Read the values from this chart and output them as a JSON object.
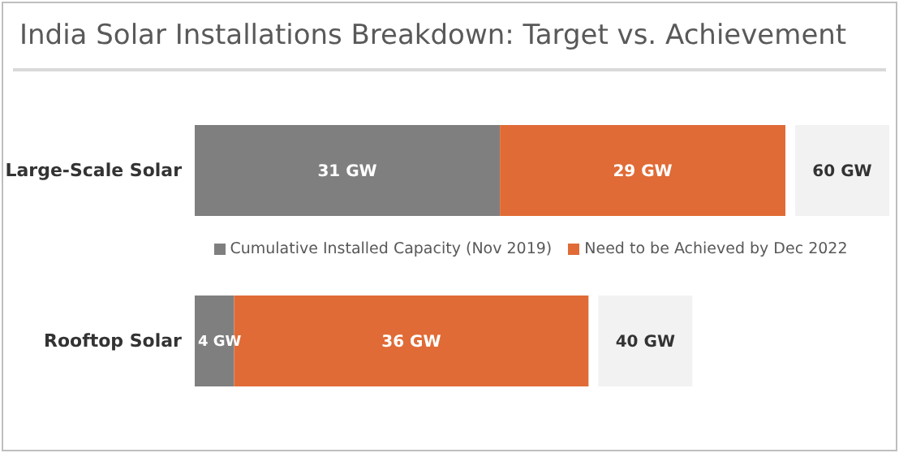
{
  "chart_data": {
    "type": "bar",
    "orientation": "horizontal",
    "stacked": true,
    "title": "India Solar Installations Breakdown: Target vs. Achievement",
    "categories": [
      "Large-Scale Solar",
      "Rooftop Solar"
    ],
    "series": [
      {
        "name": "Cumulative Installed Capacity (Nov 2019)",
        "color": "#7f7f7f",
        "values": [
          31,
          4
        ],
        "value_labels": [
          "31 GW",
          "4 GW"
        ]
      },
      {
        "name": "Need to be Achieved by Dec 2022",
        "color": "#e06b36",
        "values": [
          29,
          36
        ],
        "value_labels": [
          "29 GW",
          "36 GW"
        ]
      }
    ],
    "totals": [
      "60 GW",
      "40 GW"
    ],
    "legend": "center"
  }
}
